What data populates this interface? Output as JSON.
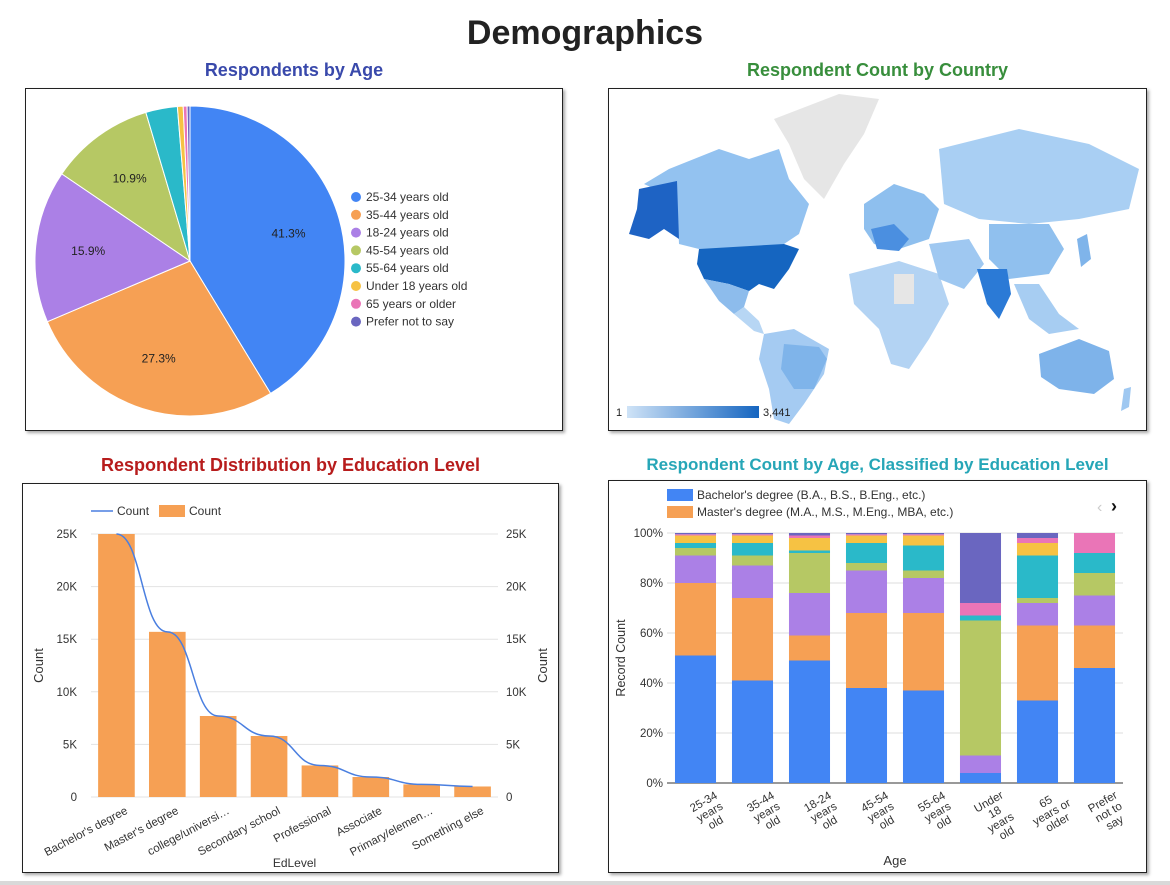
{
  "page": {
    "title": "Demographics"
  },
  "colors": {
    "blue": "#4285f4",
    "orange": "#f6a054",
    "purple": "#ab80e6",
    "olive": "#b6c864",
    "teal": "#2ab9c9",
    "yellow": "#f6c243",
    "pink": "#ea75b7",
    "indigo": "#6a66c0",
    "title_blue": "#3949ab",
    "title_green": "#388e3c",
    "title_red": "#b71c1c",
    "title_teal": "#26a6b7",
    "map_low": "#cfe3f7",
    "map_high": "#1565c0"
  },
  "chart_data": [
    {
      "id": "age_pie",
      "type": "pie",
      "title": "Respondents by Age",
      "legend_position": "right",
      "slices": [
        {
          "label": "25-34 years old",
          "value": 41.3,
          "pct_label": "41.3%",
          "color": "#4285f4"
        },
        {
          "label": "35-44 years old",
          "value": 27.3,
          "pct_label": "27.3%",
          "color": "#f6a054"
        },
        {
          "label": "18-24 years old",
          "value": 15.9,
          "pct_label": "15.9%",
          "color": "#ab80e6"
        },
        {
          "label": "45-54 years old",
          "value": 10.9,
          "pct_label": "10.9%",
          "color": "#b6c864"
        },
        {
          "label": "55-64 years old",
          "value": 3.3,
          "pct_label": "",
          "color": "#2ab9c9"
        },
        {
          "label": "Under 18 years old",
          "value": 0.6,
          "pct_label": "",
          "color": "#f6c243"
        },
        {
          "label": "65 years or older",
          "value": 0.4,
          "pct_label": "",
          "color": "#ea75b7"
        },
        {
          "label": "Prefer not to say",
          "value": 0.3,
          "pct_label": "",
          "color": "#6a66c0"
        }
      ]
    },
    {
      "id": "country_map",
      "type": "heatmap",
      "title": "Respondent Count by Country",
      "legend": {
        "min_label": "1",
        "max_label": "3,441"
      }
    },
    {
      "id": "edu_bar",
      "type": "bar",
      "title": "Respondent Distribution by Education Level",
      "legend": [
        {
          "label": "Count",
          "kind": "line"
        },
        {
          "label": "Count",
          "kind": "bar"
        }
      ],
      "xlabel": "EdLevel",
      "ylabel_left": "Count",
      "ylabel_right": "Count",
      "ylim": [
        0,
        25000
      ],
      "ticks": [
        "0",
        "5K",
        "10K",
        "15K",
        "20K",
        "25K"
      ],
      "categories": [
        "Bachelor's degree",
        "Master's degree",
        "college/universi…",
        "Secondary school",
        "Professional",
        "Associate",
        "Primary/elemen…",
        "Something else"
      ],
      "values": [
        25000,
        15700,
        7700,
        5800,
        3000,
        1900,
        1200,
        1000
      ]
    },
    {
      "id": "age_edu_stacked",
      "type": "bar",
      "title": "Respondent Count by Age, Classified by Education Level",
      "xlabel": "Age",
      "ylabel": "Record Count",
      "ylim": [
        0,
        100
      ],
      "ticks": [
        "0%",
        "20%",
        "40%",
        "60%",
        "80%",
        "100%"
      ],
      "legend": [
        {
          "label": "Bachelor's degree (B.A., B.S., B.Eng., etc.)",
          "color": "#4285f4"
        },
        {
          "label": "Master's degree (M.A., M.S., M.Eng., MBA, etc.)",
          "color": "#f6a054"
        }
      ],
      "categories": [
        [
          "25-34",
          "years",
          "old"
        ],
        [
          "35-44",
          "years",
          "old"
        ],
        [
          "18-24",
          "years",
          "old"
        ],
        [
          "45-54",
          "years",
          "old"
        ],
        [
          "55-64",
          "years",
          "old"
        ],
        [
          "Under",
          "18",
          "years",
          "old"
        ],
        [
          "65",
          "years or",
          "older"
        ],
        [
          "Prefer",
          "not to",
          "say"
        ]
      ],
      "series_colors": [
        "#4285f4",
        "#f6a054",
        "#ab80e6",
        "#b6c864",
        "#2ab9c9",
        "#f6c243",
        "#ea75b7",
        "#6a66c0"
      ],
      "stacks": [
        [
          51,
          29,
          11,
          3,
          2,
          3,
          0.5,
          0.5
        ],
        [
          41,
          33,
          13,
          4,
          5,
          3,
          0.5,
          0.5
        ],
        [
          49,
          10,
          17,
          16,
          1,
          5,
          1,
          1
        ],
        [
          38,
          30,
          17,
          3,
          8,
          3,
          0.5,
          0.5
        ],
        [
          37,
          31,
          14,
          3,
          10,
          4,
          0.5,
          0.5
        ],
        [
          4,
          0,
          7,
          54,
          2,
          0,
          5,
          28
        ],
        [
          33,
          30,
          9,
          2,
          17,
          5,
          2,
          2
        ],
        [
          46,
          17,
          12,
          9,
          8,
          0,
          8,
          0
        ]
      ]
    }
  ]
}
